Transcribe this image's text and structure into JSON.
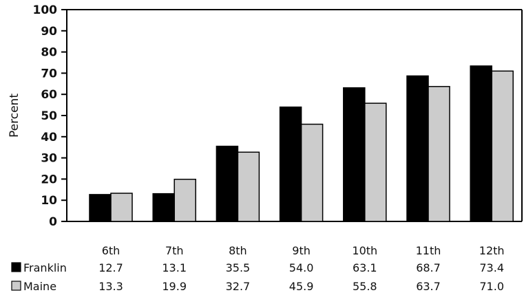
{
  "chart_data": {
    "type": "bar",
    "ylabel": "Percent",
    "ylim": [
      0,
      100
    ],
    "yticks": [
      0,
      10,
      20,
      30,
      40,
      50,
      60,
      70,
      80,
      90,
      100
    ],
    "grid": false,
    "legend_position": "table-below",
    "categories": [
      "6th",
      "7th",
      "8th",
      "9th",
      "10th",
      "11th",
      "12th"
    ],
    "series": [
      {
        "name": "Franklin",
        "color": "#000000",
        "values": [
          12.7,
          13.1,
          35.5,
          54.0,
          63.1,
          68.7,
          73.4
        ]
      },
      {
        "name": "Maine",
        "color": "#cccccc",
        "values": [
          13.3,
          19.9,
          32.7,
          45.9,
          55.8,
          63.7,
          71.0
        ]
      }
    ]
  }
}
